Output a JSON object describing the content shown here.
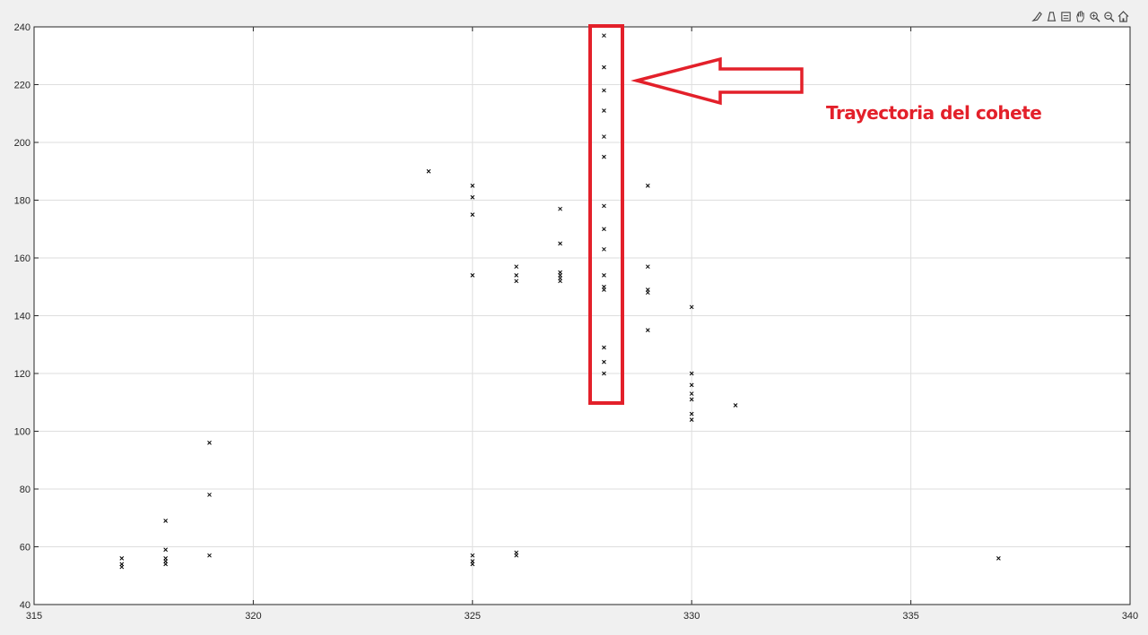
{
  "toolbar": {
    "icons": [
      "brush-icon",
      "data-tips-icon",
      "save-icon",
      "pan-icon",
      "zoom-in-icon",
      "zoom-out-icon",
      "home-icon"
    ]
  },
  "annotation": {
    "text": "Trayectoria del cohete",
    "color": "#e3202a"
  },
  "chart_data": {
    "type": "scatter",
    "title": "",
    "xlabel": "",
    "ylabel": "",
    "xlim": [
      315,
      340
    ],
    "ylim": [
      40,
      240
    ],
    "xticks": [
      315,
      320,
      325,
      330,
      335,
      340
    ],
    "yticks": [
      40,
      60,
      80,
      100,
      120,
      140,
      160,
      180,
      200,
      220,
      240
    ],
    "grid": true,
    "marker": "x",
    "marker_color": "#000000",
    "points": [
      [
        317,
        56
      ],
      [
        317,
        54
      ],
      [
        317,
        53
      ],
      [
        318,
        69
      ],
      [
        318,
        59
      ],
      [
        318,
        56
      ],
      [
        318,
        55
      ],
      [
        318,
        54
      ],
      [
        319,
        96
      ],
      [
        319,
        78
      ],
      [
        319,
        57
      ],
      [
        324,
        190
      ],
      [
        325,
        185
      ],
      [
        325,
        181
      ],
      [
        325,
        175
      ],
      [
        325,
        154
      ],
      [
        325,
        57
      ],
      [
        325,
        55
      ],
      [
        325,
        54
      ],
      [
        326,
        157
      ],
      [
        326,
        154
      ],
      [
        326,
        152
      ],
      [
        326,
        58
      ],
      [
        326,
        57
      ],
      [
        327,
        177
      ],
      [
        327,
        165
      ],
      [
        327,
        155
      ],
      [
        327,
        154
      ],
      [
        327,
        153
      ],
      [
        327,
        152
      ],
      [
        328,
        237
      ],
      [
        328,
        226
      ],
      [
        328,
        218
      ],
      [
        328,
        211
      ],
      [
        328,
        202
      ],
      [
        328,
        195
      ],
      [
        328,
        178
      ],
      [
        328,
        170
      ],
      [
        328,
        163
      ],
      [
        328,
        154
      ],
      [
        328,
        150
      ],
      [
        328,
        149
      ],
      [
        328,
        129
      ],
      [
        328,
        124
      ],
      [
        328,
        120
      ],
      [
        329,
        185
      ],
      [
        329,
        157
      ],
      [
        329,
        149
      ],
      [
        329,
        148
      ],
      [
        329,
        135
      ],
      [
        330,
        143
      ],
      [
        330,
        120
      ],
      [
        330,
        116
      ],
      [
        330,
        113
      ],
      [
        330,
        111
      ],
      [
        330,
        106
      ],
      [
        330,
        104
      ],
      [
        331,
        109
      ],
      [
        337,
        56
      ]
    ]
  }
}
